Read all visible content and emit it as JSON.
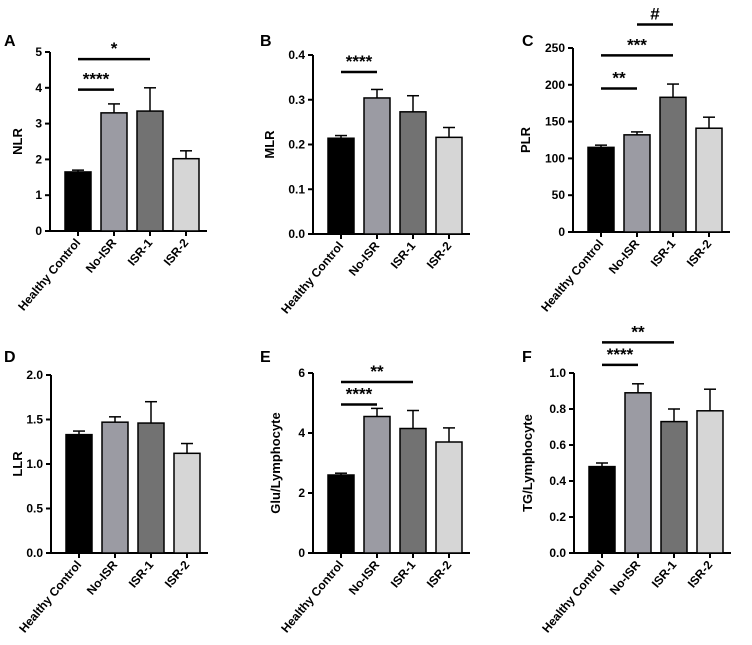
{
  "categories": [
    "Healthy Control",
    "No-ISR",
    "ISR-1",
    "ISR-2"
  ],
  "colors": {
    "bars": [
      "#000000",
      "#9b9ba3",
      "#727272",
      "#d6d6d6"
    ],
    "axis": "#000000"
  },
  "chart_data": [
    {
      "type": "bar",
      "panel": "A",
      "ylabel": "NLR",
      "ylim": [
        0,
        5
      ],
      "yticks": [
        "0",
        "1",
        "2",
        "3",
        "4",
        "5"
      ],
      "ytick_values": [
        0,
        1,
        2,
        3,
        4,
        5
      ],
      "categories": [
        "Healthy Control",
        "No-ISR",
        "ISR-1",
        "ISR-2"
      ],
      "values": [
        1.65,
        3.3,
        3.35,
        2.02
      ],
      "errors": [
        0.05,
        0.25,
        0.65,
        0.22
      ],
      "significance": [
        {
          "from": 0,
          "to": 1,
          "y": 3.95,
          "label": "****"
        },
        {
          "from": 0,
          "to": 2,
          "y": 4.8,
          "label": "*"
        }
      ]
    },
    {
      "type": "bar",
      "panel": "B",
      "ylabel": "MLR",
      "ylim": [
        0,
        0.4
      ],
      "yticks": [
        "0.0",
        "0.1",
        "0.2",
        "0.3",
        "0.4"
      ],
      "ytick_values": [
        0,
        0.1,
        0.2,
        0.3,
        0.4
      ],
      "categories": [
        "Healthy Control",
        "No-ISR",
        "ISR-1",
        "ISR-2"
      ],
      "values": [
        0.214,
        0.304,
        0.273,
        0.216
      ],
      "errors": [
        0.006,
        0.019,
        0.036,
        0.022
      ],
      "significance": [
        {
          "from": 0,
          "to": 1,
          "y": 0.362,
          "label": "****"
        }
      ]
    },
    {
      "type": "bar",
      "panel": "C",
      "ylabel": "PLR",
      "ylim": [
        0,
        250
      ],
      "yticks": [
        "0",
        "50",
        "100",
        "150",
        "200",
        "250"
      ],
      "ytick_values": [
        0,
        50,
        100,
        150,
        200,
        250
      ],
      "categories": [
        "Healthy Control",
        "No-ISR",
        "ISR-1",
        "ISR-2"
      ],
      "values": [
        115,
        132,
        183,
        141
      ],
      "errors": [
        3,
        4,
        18,
        15
      ],
      "significance": [
        {
          "from": 0,
          "to": 1,
          "y": 195,
          "label": "**"
        },
        {
          "from": 0,
          "to": 2,
          "y": 240,
          "label": "***"
        },
        {
          "from": 1,
          "to": 2,
          "y": 282,
          "label": "#"
        }
      ]
    },
    {
      "type": "bar",
      "panel": "D",
      "ylabel": "LLR",
      "ylim": [
        0,
        2.0
      ],
      "yticks": [
        "0.0",
        "0.5",
        "1.0",
        "1.5",
        "2.0"
      ],
      "ytick_values": [
        0,
        0.5,
        1.0,
        1.5,
        2.0
      ],
      "categories": [
        "Healthy Control",
        "No-ISR",
        "ISR-1",
        "ISR-2"
      ],
      "values": [
        1.33,
        1.47,
        1.46,
        1.12
      ],
      "errors": [
        0.04,
        0.06,
        0.24,
        0.11
      ],
      "significance": []
    },
    {
      "type": "bar",
      "panel": "E",
      "ylabel": "Glu/Lymphocyte",
      "ylim": [
        0,
        6
      ],
      "yticks": [
        "0",
        "2",
        "4",
        "6"
      ],
      "ytick_values": [
        0,
        2,
        4,
        6
      ],
      "categories": [
        "Healthy Control",
        "No-ISR",
        "ISR-1",
        "ISR-2"
      ],
      "values": [
        2.6,
        4.55,
        4.15,
        3.7
      ],
      "errors": [
        0.06,
        0.27,
        0.6,
        0.47
      ],
      "significance": [
        {
          "from": 0,
          "to": 1,
          "y": 4.95,
          "label": "****"
        },
        {
          "from": 0,
          "to": 2,
          "y": 5.7,
          "label": "**"
        }
      ]
    },
    {
      "type": "bar",
      "panel": "F",
      "ylabel": "TG/Lymphocyte",
      "ylim": [
        0,
        1.0
      ],
      "yticks": [
        "0.0",
        "0.2",
        "0.4",
        "0.6",
        "0.8",
        "1.0"
      ],
      "ytick_values": [
        0,
        0.2,
        0.4,
        0.6,
        0.8,
        1.0
      ],
      "categories": [
        "Healthy Control",
        "No-ISR",
        "ISR-1",
        "ISR-2"
      ],
      "values": [
        0.48,
        0.89,
        0.73,
        0.79
      ],
      "errors": [
        0.02,
        0.05,
        0.07,
        0.12
      ],
      "significance": [
        {
          "from": 0,
          "to": 1,
          "y": 1.045,
          "label": "****"
        },
        {
          "from": 0,
          "to": 2,
          "y": 1.17,
          "label": "**"
        }
      ]
    }
  ]
}
